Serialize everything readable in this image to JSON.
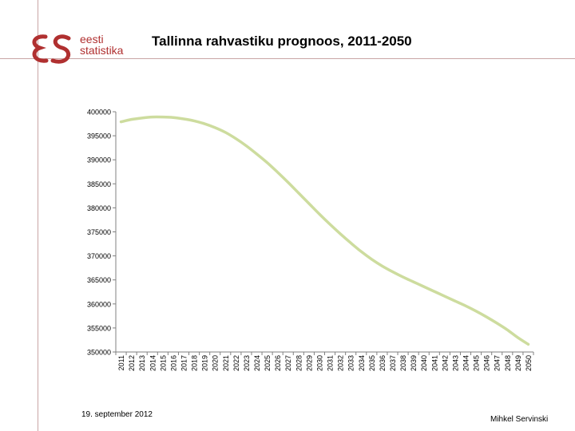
{
  "slide": {
    "title": "Tallinna rahvastiku prognoos, 2011-2050",
    "date": "19. september 2012",
    "author": "Mihkel Servinski"
  },
  "logo": {
    "monogram": "es",
    "line1": "eesti",
    "line2": "statistika",
    "color": "#b03030"
  },
  "colors": {
    "line": "#cddc9e",
    "axis": "#808080",
    "divider": "#c9a5a5"
  },
  "chart_data": {
    "type": "line",
    "title": "Tallinna rahvastiku prognoos, 2011-2050",
    "xlabel": "",
    "ylabel": "",
    "ylim": [
      350000,
      400000
    ],
    "yticks": [
      350000,
      355000,
      360000,
      365000,
      370000,
      375000,
      380000,
      385000,
      390000,
      395000,
      400000
    ],
    "grid": false,
    "legend": "none",
    "categories": [
      "2011",
      "2012",
      "2013",
      "2014",
      "2015",
      "2016",
      "2017",
      "2018",
      "2019",
      "2020",
      "2021",
      "2022",
      "2023",
      "2024",
      "2025",
      "2026",
      "2027",
      "2028",
      "2029",
      "2030",
      "2031",
      "2032",
      "2033",
      "2034",
      "2035",
      "2036",
      "2037",
      "2038",
      "2039",
      "2040",
      "2041",
      "2042",
      "2043",
      "2044",
      "2045",
      "2046",
      "2047",
      "2048",
      "2049",
      "2050"
    ],
    "series": [
      {
        "values": [
          397900,
          398400,
          398700,
          398900,
          398900,
          398800,
          398500,
          398100,
          397500,
          396700,
          395700,
          394400,
          392900,
          391200,
          389400,
          387400,
          385300,
          383100,
          380900,
          378700,
          376600,
          374600,
          372700,
          370900,
          369300,
          367900,
          366700,
          365600,
          364600,
          363600,
          362600,
          361600,
          360600,
          359600,
          358500,
          357300,
          356000,
          354600,
          353000,
          351600
        ]
      }
    ]
  }
}
